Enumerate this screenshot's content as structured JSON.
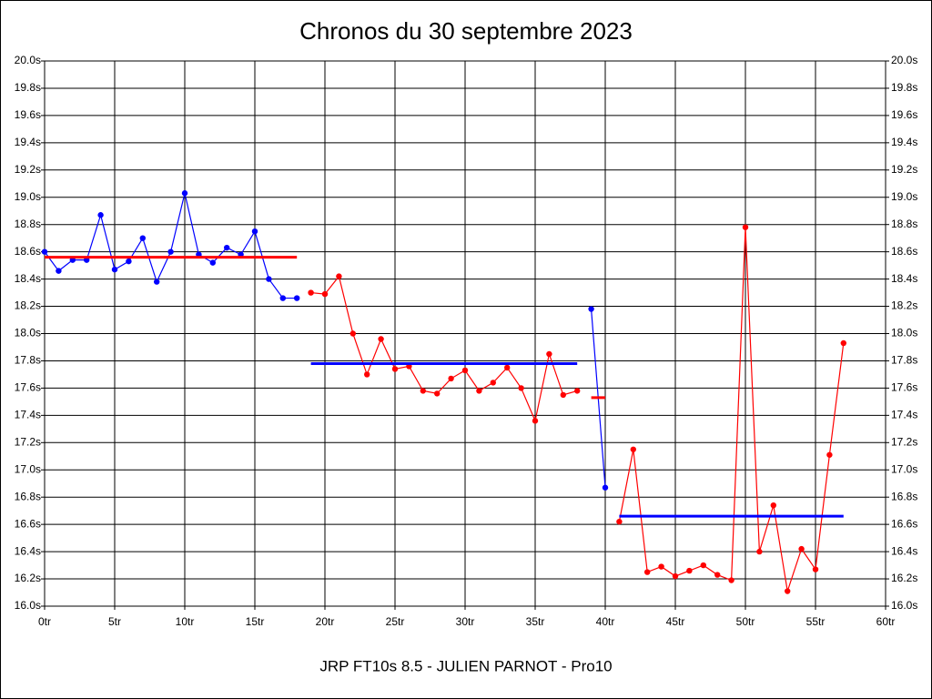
{
  "chart_data": {
    "type": "line",
    "title": "Chronos du 30 septembre 2023",
    "xlabel": "JRP FT10s 8.5 - JULIEN PARNOT - Pro10",
    "xlim": [
      0,
      60
    ],
    "ylim": [
      16,
      20
    ],
    "grid": true,
    "right_axis_labels": true,
    "xticks": [
      {
        "value": 0,
        "label": "0tr"
      },
      {
        "value": 5,
        "label": "5tr"
      },
      {
        "value": 10,
        "label": "10tr"
      },
      {
        "value": 15,
        "label": "15tr"
      },
      {
        "value": 20,
        "label": "20tr"
      },
      {
        "value": 25,
        "label": "25tr"
      },
      {
        "value": 30,
        "label": "30tr"
      },
      {
        "value": 35,
        "label": "35tr"
      },
      {
        "value": 40,
        "label": "40tr"
      },
      {
        "value": 45,
        "label": "45tr"
      },
      {
        "value": 50,
        "label": "50tr"
      },
      {
        "value": 55,
        "label": "55tr"
      },
      {
        "value": 60,
        "label": "60tr"
      }
    ],
    "yticks": [
      {
        "value": 16.0,
        "label": "16.0s"
      },
      {
        "value": 16.2,
        "label": "16.2s"
      },
      {
        "value": 16.4,
        "label": "16.4s"
      },
      {
        "value": 16.6,
        "label": "16.6s"
      },
      {
        "value": 16.8,
        "label": "16.8s"
      },
      {
        "value": 17.0,
        "label": "17.0s"
      },
      {
        "value": 17.2,
        "label": "17.2s"
      },
      {
        "value": 17.4,
        "label": "17.4s"
      },
      {
        "value": 17.6,
        "label": "17.6s"
      },
      {
        "value": 17.8,
        "label": "17.8s"
      },
      {
        "value": 18.0,
        "label": "18.0s"
      },
      {
        "value": 18.2,
        "label": "18.2s"
      },
      {
        "value": 18.4,
        "label": "18.4s"
      },
      {
        "value": 18.6,
        "label": "18.6s"
      },
      {
        "value": 18.8,
        "label": "18.8s"
      },
      {
        "value": 19.0,
        "label": "19.0s"
      },
      {
        "value": 19.2,
        "label": "19.2s"
      },
      {
        "value": 19.4,
        "label": "19.4s"
      },
      {
        "value": 19.6,
        "label": "19.6s"
      },
      {
        "value": 19.8,
        "label": "19.8s"
      },
      {
        "value": 20.0,
        "label": "20.0s"
      }
    ],
    "series": [
      {
        "color": "#0000ff",
        "markers": true,
        "x": [
          0,
          1,
          2,
          3,
          4,
          5,
          6,
          7,
          8,
          9,
          10,
          11,
          12,
          13,
          14,
          15,
          16,
          17,
          18
        ],
        "values": [
          18.6,
          18.46,
          18.54,
          18.54,
          18.87,
          18.47,
          18.53,
          18.7,
          18.38,
          18.6,
          19.03,
          18.58,
          18.52,
          18.63,
          18.58,
          18.75,
          18.4,
          18.26,
          18.26
        ]
      },
      {
        "color": "#ff0000",
        "markers": false,
        "x": [
          0,
          18
        ],
        "values": [
          18.56,
          18.56
        ]
      },
      {
        "color": "#ff0000",
        "markers": true,
        "x": [
          19,
          20,
          21,
          22,
          23,
          24,
          25,
          26,
          27,
          28,
          29,
          30,
          31,
          32,
          33,
          34,
          35,
          36,
          37,
          38
        ],
        "values": [
          18.3,
          18.29,
          18.42,
          18.0,
          17.7,
          17.96,
          17.74,
          17.76,
          17.58,
          17.56,
          17.67,
          17.73,
          17.58,
          17.64,
          17.75,
          17.6,
          17.36,
          17.85,
          17.55,
          17.58
        ]
      },
      {
        "color": "#0000ff",
        "markers": false,
        "x": [
          19,
          38
        ],
        "values": [
          17.78,
          17.78
        ]
      },
      {
        "color": "#0000ff",
        "markers": true,
        "x": [
          39,
          40
        ],
        "values": [
          18.18,
          16.87
        ]
      },
      {
        "color": "#ff0000",
        "markers": false,
        "x": [
          39,
          40
        ],
        "values": [
          17.53,
          17.53
        ]
      },
      {
        "color": "#ff0000",
        "markers": true,
        "x": [
          41,
          42,
          43,
          44,
          45,
          46,
          47,
          48,
          49,
          50,
          51,
          52,
          53,
          54,
          55,
          56,
          57
        ],
        "values": [
          16.62,
          17.15,
          16.25,
          16.29,
          16.22,
          16.26,
          16.3,
          16.23,
          16.19,
          18.78,
          16.4,
          16.74,
          16.11,
          16.42,
          16.27,
          17.11,
          17.93
        ]
      },
      {
        "color": "#0000ff",
        "markers": false,
        "x": [
          41,
          57
        ],
        "values": [
          16.66,
          16.66
        ]
      }
    ]
  }
}
